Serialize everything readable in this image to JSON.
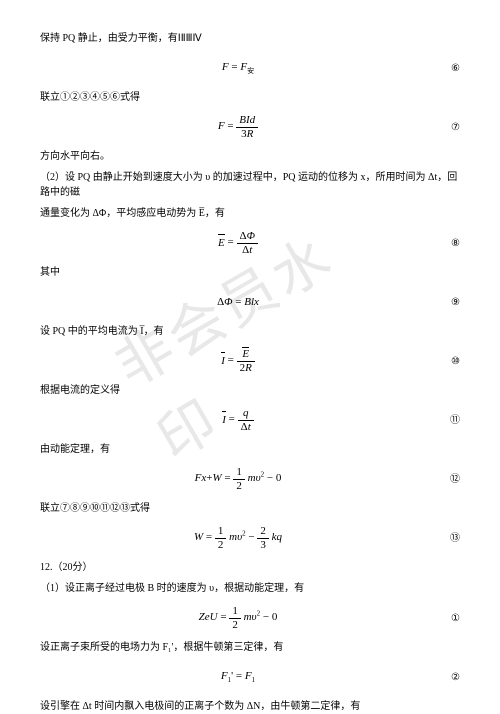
{
  "watermark": "非会员水印",
  "lines": {
    "l1": "保持 PQ 静止，由受力平衡，有ⅠⅡⅢⅣ",
    "l2": "联立①②③④⑤⑥式得",
    "l3": "方向水平向右。",
    "l4": "（2）设 PQ 由静止开始到速度大小为 υ 的加速过程中，PQ 运动的位移为 x，所用时间为 Δt，回路中的磁",
    "l5": "通量变化为 ΔΦ，平均感应电动势为 E̅，有",
    "l6": "其中",
    "l7": "设 PQ 中的平均电流为 I̅，有",
    "l8": "根据电流的定义得",
    "l9": "由动能定理，有",
    "l10": "联立⑦⑧⑨⑩⑪⑫⑬式得",
    "l11": "12.（20分）",
    "l12": "（1）设正离子经过电极 B 时的速度为 υ，根据动能定理，有",
    "l13": "设正离子束所受的电场力为 F₁'，根据牛顿第三定律，有",
    "l14": "设引擎在 Δt 时间内飘入电极间的正离子个数为 ΔN，由牛顿第二定律，有"
  },
  "eqnums": {
    "n6": "⑥",
    "n7": "⑦",
    "n8": "⑧",
    "n9": "⑨",
    "n10": "⑩",
    "n11": "⑪",
    "n12": "⑫",
    "n13": "⑬",
    "c1": "①",
    "c2": "②"
  }
}
